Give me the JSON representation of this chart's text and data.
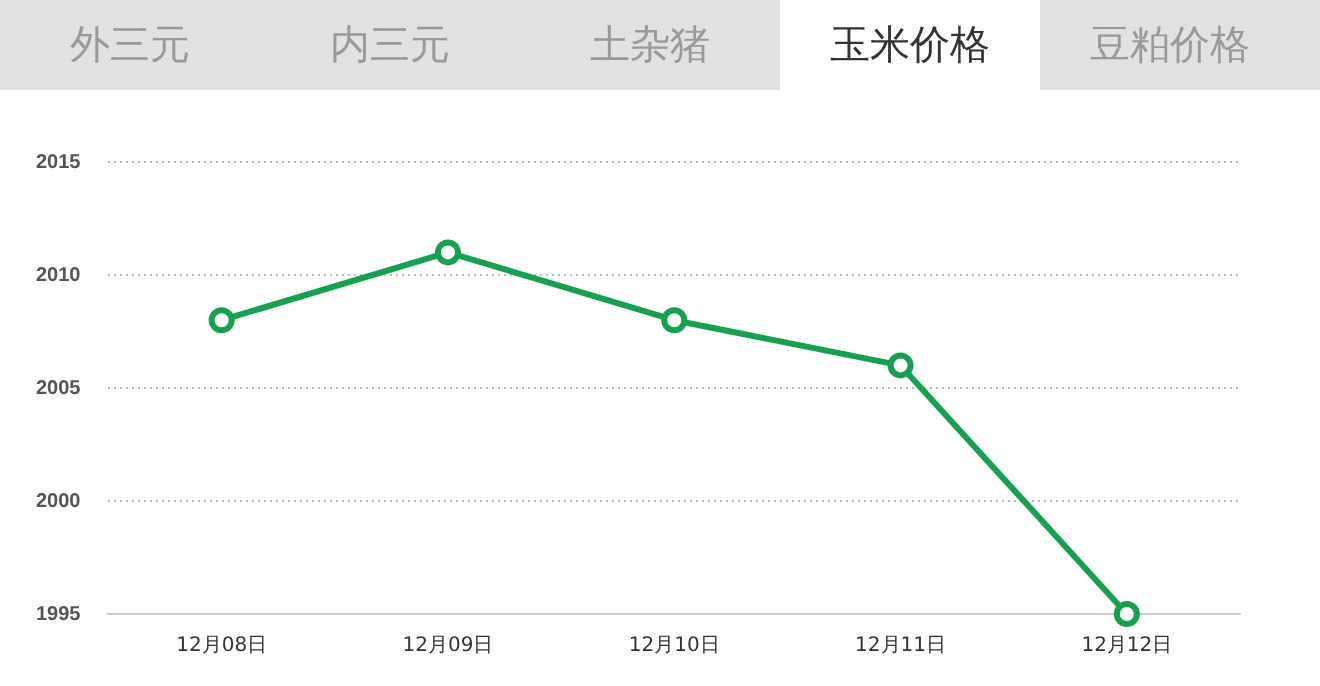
{
  "chart_data": {
    "type": "line",
    "annotations": [
      "外三元",
      "内三元",
      "土杂猪",
      "玉米价格",
      "豆粕价格"
    ],
    "categories": [
      "12月08日",
      "12月09日",
      "12月10日",
      "12月11日",
      "12月12日"
    ],
    "series": [
      {
        "color": "#16a050",
        "values": [
          2008,
          2011,
          2008,
          2006,
          1995
        ]
      }
    ],
    "ylim": [
      1995,
      2015
    ],
    "yticks": [
      1995,
      2000,
      2005,
      2010,
      2015
    ],
    "grid": "y",
    "legend": false,
    "marker": "circle",
    "line_style": "solid"
  }
}
